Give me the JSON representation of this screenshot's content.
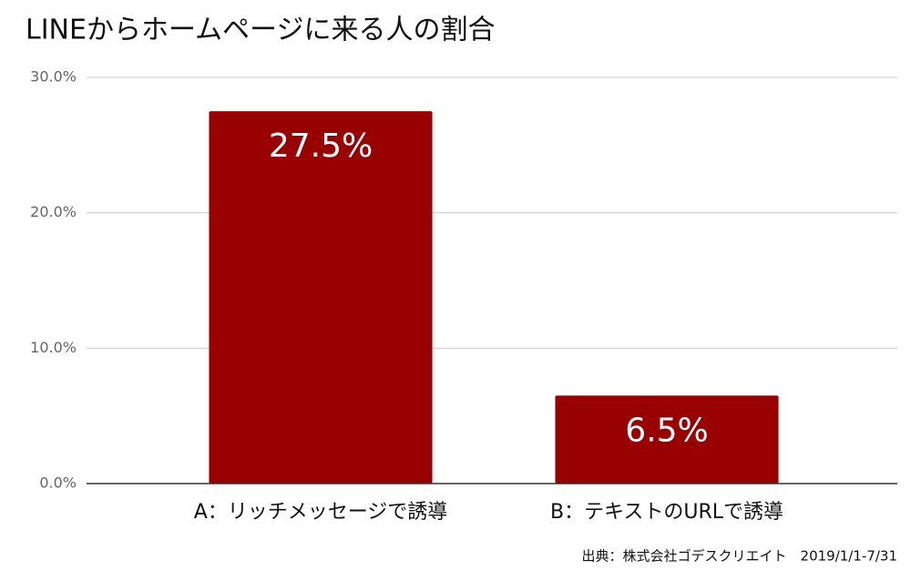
{
  "chart_data": {
    "type": "bar",
    "title": "LINEからホームページに来る人の割合",
    "categories": [
      "A：リッチメッセージで誘導",
      "B：テキストのURLで誘導"
    ],
    "values": [
      27.5,
      6.5
    ],
    "value_labels": [
      "27.5%",
      "6.5%"
    ],
    "color": "#990000",
    "ylim": [
      0,
      30
    ],
    "yticks": [
      {
        "value": 0,
        "label": "0.0%"
      },
      {
        "value": 10,
        "label": "10.0%"
      },
      {
        "value": 20,
        "label": "20.0%"
      },
      {
        "value": 30,
        "label": "30.0%"
      }
    ],
    "grid": true,
    "source": "出典：株式会社ゴデスクリエイト　2019/1/1-7/31"
  }
}
